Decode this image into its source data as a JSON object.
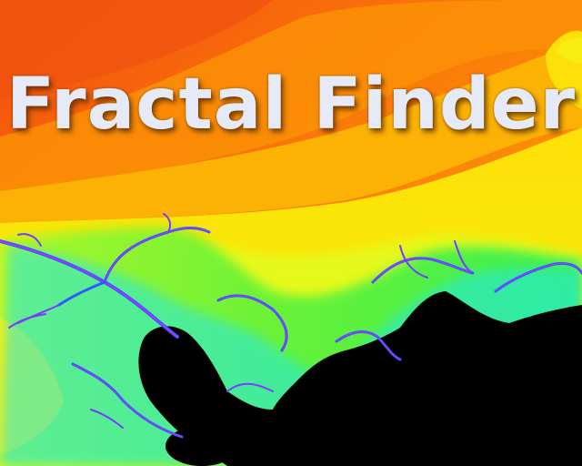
{
  "app": {
    "title": "Fractal Finder"
  },
  "palette": {
    "band_deep_orange": "#f45a0c",
    "band_orange": "#fb8a08",
    "band_amber": "#fcb205",
    "band_yellow": "#fde307",
    "band_lime": "#d8fb1c",
    "band_green": "#38f043",
    "band_cyan": "#18f0f8",
    "band_blue": "#2c5cff",
    "band_magenta": "#c828ff",
    "set_black": "#000000",
    "title_color": "#e6e9f6"
  }
}
